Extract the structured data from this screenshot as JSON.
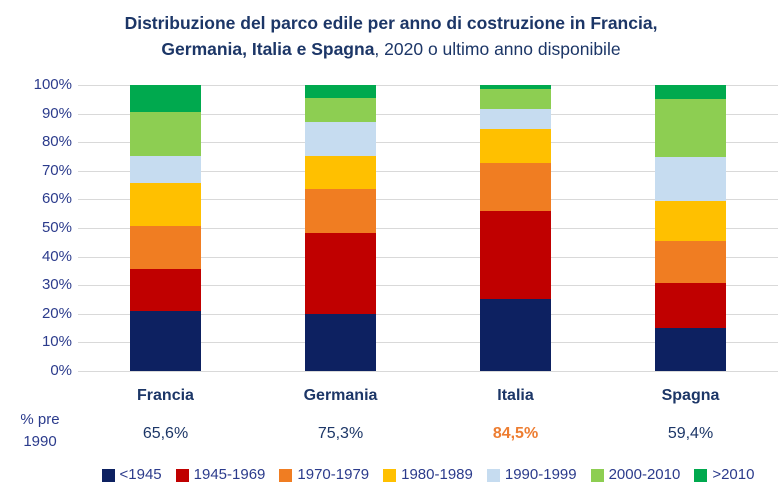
{
  "title": {
    "line1": "Distribuzione del parco edile per anno di costruzione in Francia,",
    "line2_bold": "Germania, Italia e Spagna",
    "line2_regular": ", 2020 o ultimo anno disponibile"
  },
  "chart_data": {
    "type": "bar",
    "stacked": true,
    "title": "Distribuzione del parco edile per anno di costruzione in Francia, Germania, Italia e Spagna, 2020 o ultimo anno disponibile",
    "categories": [
      "Francia",
      "Germania",
      "Italia",
      "Spagna"
    ],
    "series": [
      {
        "name": "<1945",
        "color": "#0D2161",
        "values": [
          21.0,
          20.0,
          25.3,
          15.0
        ]
      },
      {
        "name": "1945-1969",
        "color": "#C00000",
        "values": [
          14.6,
          28.3,
          30.6,
          15.8
        ]
      },
      {
        "name": "1970-1979",
        "color": "#F07D22",
        "values": [
          15.0,
          15.4,
          16.9,
          14.5
        ]
      },
      {
        "name": "1980-1989",
        "color": "#FFC000",
        "values": [
          15.0,
          11.6,
          11.7,
          14.1
        ]
      },
      {
        "name": "1990-1999",
        "color": "#C6DCF0",
        "values": [
          9.7,
          11.9,
          7.0,
          15.5
        ]
      },
      {
        "name": "2000-2010",
        "color": "#8DCE52",
        "values": [
          15.2,
          8.4,
          7.0,
          20.1
        ]
      },
      {
        "name": ">2010",
        "color": "#00A94E",
        "values": [
          9.5,
          4.4,
          1.5,
          5.0
        ]
      }
    ],
    "y_ticks": [
      "100%",
      "90%",
      "80%",
      "70%",
      "60%",
      "50%",
      "40%",
      "30%",
      "20%",
      "10%",
      "0%"
    ],
    "ylim": [
      0,
      100
    ],
    "grid": true,
    "legend_position": "bottom",
    "pre1990": {
      "label_line1": "% pre",
      "label_line2": "1990",
      "values": [
        "65,6%",
        "75,3%",
        "84,5%",
        "59,4%"
      ],
      "highlight_index": 2
    },
    "colors": {
      "text_dark": "#1C3667",
      "text_blue": "#2B3B8C",
      "grid": "#D9D9D9",
      "highlight": "#ED7D31"
    }
  }
}
